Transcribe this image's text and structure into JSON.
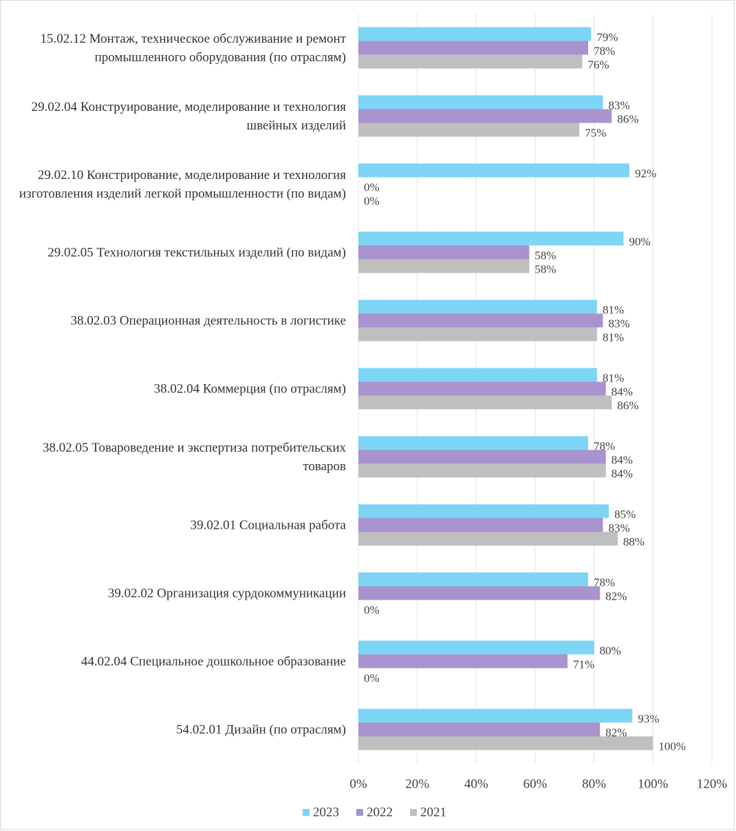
{
  "chart_data": {
    "type": "bar",
    "orientation": "horizontal",
    "categories": [
      "15.02.12 Монтаж, техническое обслуживание и ремонт промышленного оборудования (по отраслям)",
      "29.02.04 Конструирование, моделирование и технология швейных изделий",
      "29.02.10 Констрирование, моделирование и технология изготовления изделий легкой промышленности (по видам)",
      "29.02.05 Технология текстильных изделий (по видам)",
      "38.02.03 Операционная деятельность в логистике",
      "38.02.04 Коммерция (по отраслям)",
      "38.02.05 Товароведение и экспертиза потребительских товаров",
      "39.02.01 Социальная работа",
      "39.02.02 Организация сурдокоммуникации",
      "44.02.04 Специальное дошкольное образование",
      "54.02.01 Дизайн (по отраслям)"
    ],
    "series": [
      {
        "name": "2023",
        "color": "#7dd4f5",
        "values": [
          79,
          83,
          92,
          90,
          81,
          81,
          78,
          85,
          78,
          80,
          93
        ],
        "value_labels": [
          "79%",
          "83%",
          "92%",
          "90%",
          "81%",
          "81%",
          "78%",
          "85%",
          "78%",
          "80%",
          "93%"
        ]
      },
      {
        "name": "2022",
        "color": "#a893cf",
        "values": [
          78,
          86,
          0,
          58,
          83,
          84,
          84,
          83,
          82,
          71,
          82
        ],
        "value_labels": [
          "78%",
          "86%",
          "0%",
          "58%",
          "83%",
          "84%",
          "84%",
          "83%",
          "82%",
          "71%",
          "82%"
        ]
      },
      {
        "name": "2021",
        "color": "#bfbfbf",
        "values": [
          76,
          75,
          0,
          58,
          81,
          86,
          84,
          88,
          0,
          0,
          100
        ],
        "value_labels": [
          "76%",
          "75%",
          "0%",
          "58%",
          "81%",
          "86%",
          "84%",
          "88%",
          "0%",
          "0%",
          "100%"
        ]
      }
    ],
    "xlim": [
      0,
      120
    ],
    "xticks": [
      {
        "value": 0,
        "label": "0%"
      },
      {
        "value": 20,
        "label": "20%"
      },
      {
        "value": 40,
        "label": "40%"
      },
      {
        "value": 60,
        "label": "60%"
      },
      {
        "value": 80,
        "label": "80%"
      },
      {
        "value": 100,
        "label": "100%"
      },
      {
        "value": 120,
        "label": "120%"
      }
    ],
    "grid": true,
    "legend": "bottom"
  }
}
